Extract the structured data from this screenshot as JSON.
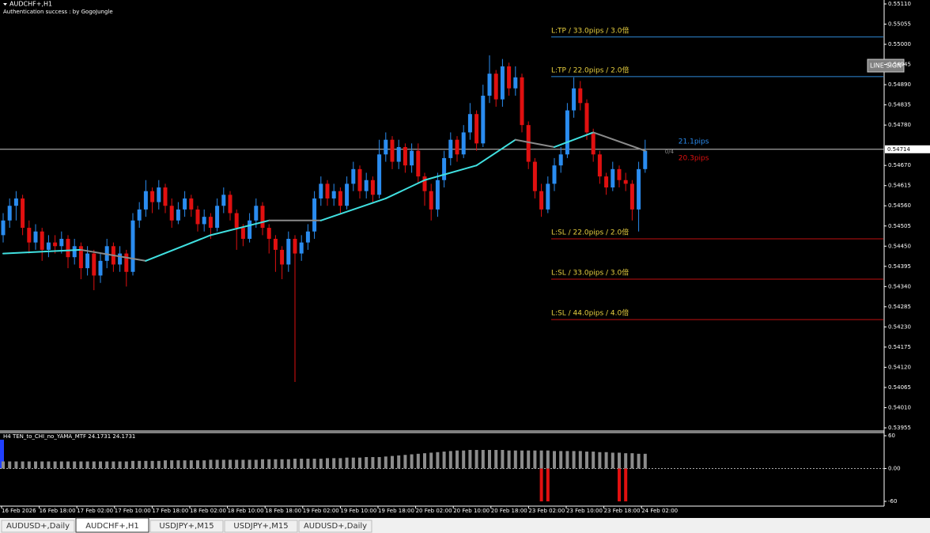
{
  "window": {
    "symbol": "AUDCHF+,H1",
    "auth": "Authentication success : by GogoJungle",
    "button": "LINE SIGN",
    "tabs": [
      "AUDUSD+,Daily",
      "AUDCHF+,H1",
      "USDJPY+,M15",
      "USDJPY+,M15",
      "AUDUSD+,Daily"
    ],
    "active_tab": 1
  },
  "chart_data": {
    "type": "candlestick",
    "ylim": [
      0.53955,
      0.5511
    ],
    "yticks": [
      {
        "value": 0.5511,
        "label": "0.55110"
      },
      {
        "value": 0.55055,
        "label": "0.55055"
      },
      {
        "value": 0.55,
        "label": "0.55000"
      },
      {
        "value": 0.54945,
        "label": "0.54945"
      },
      {
        "value": 0.5489,
        "label": "0.54890"
      },
      {
        "value": 0.54835,
        "label": "0.54835"
      },
      {
        "value": 0.5478,
        "label": "0.54780"
      },
      {
        "value": 0.5467,
        "label": "0.54670"
      },
      {
        "value": 0.54615,
        "label": "0.54615"
      },
      {
        "value": 0.5456,
        "label": "0.54560"
      },
      {
        "value": 0.54505,
        "label": "0.54505"
      },
      {
        "value": 0.5445,
        "label": "0.54450"
      },
      {
        "value": 0.54395,
        "label": "0.54395"
      },
      {
        "value": 0.5434,
        "label": "0.54340"
      },
      {
        "value": 0.54285,
        "label": "0.54285"
      },
      {
        "value": 0.5423,
        "label": "0.54230"
      },
      {
        "value": 0.54175,
        "label": "0.54175"
      },
      {
        "value": 0.5412,
        "label": "0.54120"
      },
      {
        "value": 0.54065,
        "label": "0.54065"
      },
      {
        "value": 0.5401,
        "label": "0.54010"
      },
      {
        "value": 0.53955,
        "label": "0.53955"
      }
    ],
    "xtick_labels": [
      "16 Feb 2026",
      "16 Feb 18:00",
      "17 Feb 02:00",
      "17 Feb 10:00",
      "17 Feb 18:00",
      "18 Feb 02:00",
      "18 Feb 10:00",
      "18 Feb 18:00",
      "19 Feb 02:00",
      "19 Feb 10:00",
      "19 Feb 18:00",
      "20 Feb 02:00",
      "20 Feb 10:00",
      "20 Feb 18:00",
      "23 Feb 02:00",
      "23 Feb 10:00",
      "23 Feb 18:00",
      "24 Feb 02:00"
    ],
    "up_color": "#2a8cf0",
    "down_color": "#e01010",
    "current": {
      "value": 0.54714,
      "label": "0.54714"
    },
    "pips": [
      {
        "label": "21.1pips",
        "color": "#2a8cf0"
      },
      {
        "label": "20.3pips",
        "color": "#e01010"
      }
    ],
    "counter": "0/4",
    "levels": [
      {
        "label": "L:TP / 33.0pips / 3.0倍",
        "value": 0.5502,
        "color": "#2f8ad8"
      },
      {
        "label": "L:TP / 22.0pips / 2.0倍",
        "value": 0.54912,
        "color": "#2f8ad8"
      },
      {
        "label": "L:SL / 22.0pips / 2.0倍",
        "value": 0.5447,
        "color": "#c01010"
      },
      {
        "label": "L:SL / 33.0pips / 3.0倍",
        "value": 0.5436,
        "color": "#c01010"
      },
      {
        "label": "L:SL / 44.0pips / 4.0倍",
        "value": 0.5425,
        "color": "#c01010"
      }
    ],
    "ohlc": [
      [
        0.5448,
        0.5454,
        0.5446,
        0.5452
      ],
      [
        0.5452,
        0.5458,
        0.545,
        0.5456
      ],
      [
        0.5456,
        0.546,
        0.5452,
        0.5458
      ],
      [
        0.5458,
        0.5459,
        0.5448,
        0.545
      ],
      [
        0.545,
        0.5452,
        0.5443,
        0.5446
      ],
      [
        0.5446,
        0.5451,
        0.5444,
        0.5449
      ],
      [
        0.5449,
        0.545,
        0.5441,
        0.5444
      ],
      [
        0.5444,
        0.5448,
        0.5442,
        0.5446
      ],
      [
        0.5446,
        0.5448,
        0.5443,
        0.5445
      ],
      [
        0.5445,
        0.5449,
        0.5443,
        0.5447
      ],
      [
        0.5447,
        0.5448,
        0.5439,
        0.5442
      ],
      [
        0.5442,
        0.5447,
        0.544,
        0.5445
      ],
      [
        0.5445,
        0.5446,
        0.5436,
        0.5439
      ],
      [
        0.5439,
        0.5445,
        0.5437,
        0.5443
      ],
      [
        0.5443,
        0.5444,
        0.5433,
        0.5437
      ],
      [
        0.5437,
        0.5443,
        0.5435,
        0.5441
      ],
      [
        0.5441,
        0.5447,
        0.5439,
        0.5445
      ],
      [
        0.5445,
        0.5446,
        0.5438,
        0.544
      ],
      [
        0.544,
        0.5445,
        0.5438,
        0.5443
      ],
      [
        0.5443,
        0.5444,
        0.5434,
        0.5438
      ],
      [
        0.5438,
        0.5454,
        0.5437,
        0.5452
      ],
      [
        0.5452,
        0.5457,
        0.545,
        0.5455
      ],
      [
        0.5455,
        0.5463,
        0.5453,
        0.546
      ],
      [
        0.546,
        0.5461,
        0.5454,
        0.5457
      ],
      [
        0.5457,
        0.5463,
        0.5455,
        0.5461
      ],
      [
        0.5461,
        0.5462,
        0.5454,
        0.5456
      ],
      [
        0.5456,
        0.5458,
        0.545,
        0.5452
      ],
      [
        0.5452,
        0.5457,
        0.5451,
        0.5455
      ],
      [
        0.5455,
        0.546,
        0.5453,
        0.5458
      ],
      [
        0.5458,
        0.5459,
        0.5453,
        0.5455
      ],
      [
        0.5455,
        0.5456,
        0.5449,
        0.5451
      ],
      [
        0.5451,
        0.5455,
        0.5449,
        0.5453
      ],
      [
        0.5453,
        0.5454,
        0.5447,
        0.545
      ],
      [
        0.545,
        0.5458,
        0.5449,
        0.5456
      ],
      [
        0.5456,
        0.5461,
        0.5454,
        0.5459
      ],
      [
        0.5459,
        0.546,
        0.5452,
        0.5454
      ],
      [
        0.5454,
        0.5455,
        0.5444,
        0.545
      ],
      [
        0.545,
        0.5451,
        0.5445,
        0.5447
      ],
      [
        0.5447,
        0.5454,
        0.5446,
        0.5452
      ],
      [
        0.5452,
        0.5458,
        0.545,
        0.5456
      ],
      [
        0.5456,
        0.5457,
        0.5448,
        0.545
      ],
      [
        0.545,
        0.5451,
        0.5443,
        0.5447
      ],
      [
        0.5447,
        0.5448,
        0.5438,
        0.5444
      ],
      [
        0.5444,
        0.5445,
        0.5436,
        0.544
      ],
      [
        0.544,
        0.5449,
        0.5438,
        0.5447
      ],
      [
        0.5447,
        0.5448,
        0.5408,
        0.5443
      ],
      [
        0.5443,
        0.5448,
        0.5441,
        0.5446
      ],
      [
        0.5446,
        0.5451,
        0.5444,
        0.5449
      ],
      [
        0.5449,
        0.546,
        0.5447,
        0.5458
      ],
      [
        0.5458,
        0.5464,
        0.5456,
        0.5462
      ],
      [
        0.5462,
        0.5463,
        0.5456,
        0.5458
      ],
      [
        0.5458,
        0.5462,
        0.5456,
        0.546
      ],
      [
        0.546,
        0.5461,
        0.5454,
        0.5456
      ],
      [
        0.5456,
        0.5464,
        0.5455,
        0.5462
      ],
      [
        0.5462,
        0.5468,
        0.546,
        0.5466
      ],
      [
        0.5466,
        0.5467,
        0.5458,
        0.546
      ],
      [
        0.546,
        0.5465,
        0.5458,
        0.5463
      ],
      [
        0.5463,
        0.5464,
        0.5457,
        0.5459
      ],
      [
        0.5459,
        0.5474,
        0.5458,
        0.547
      ],
      [
        0.547,
        0.5476,
        0.5468,
        0.5474
      ],
      [
        0.5474,
        0.5475,
        0.5466,
        0.5468
      ],
      [
        0.5468,
        0.5474,
        0.5466,
        0.5472
      ],
      [
        0.5472,
        0.5473,
        0.5465,
        0.5467
      ],
      [
        0.5467,
        0.5473,
        0.5465,
        0.5471
      ],
      [
        0.5471,
        0.5473,
        0.5462,
        0.5464
      ],
      [
        0.5464,
        0.5465,
        0.5456,
        0.546
      ],
      [
        0.546,
        0.5462,
        0.5452,
        0.5455
      ],
      [
        0.5455,
        0.5465,
        0.5453,
        0.5463
      ],
      [
        0.5463,
        0.5471,
        0.5461,
        0.5469
      ],
      [
        0.5469,
        0.5476,
        0.5467,
        0.5474
      ],
      [
        0.5474,
        0.5475,
        0.5468,
        0.547
      ],
      [
        0.547,
        0.5478,
        0.5469,
        0.5476
      ],
      [
        0.5476,
        0.5484,
        0.5474,
        0.5481
      ],
      [
        0.5481,
        0.5482,
        0.5471,
        0.5473
      ],
      [
        0.5473,
        0.5489,
        0.5472,
        0.5486
      ],
      [
        0.5486,
        0.5497,
        0.5484,
        0.5492
      ],
      [
        0.5492,
        0.5493,
        0.5483,
        0.5485
      ],
      [
        0.5485,
        0.5496,
        0.5483,
        0.5494
      ],
      [
        0.5494,
        0.5495,
        0.5486,
        0.5488
      ],
      [
        0.5488,
        0.5494,
        0.5486,
        0.5491
      ],
      [
        0.5491,
        0.5492,
        0.5476,
        0.5478
      ],
      [
        0.5478,
        0.5479,
        0.5466,
        0.5468
      ],
      [
        0.5468,
        0.5469,
        0.5458,
        0.546
      ],
      [
        0.546,
        0.5462,
        0.5453,
        0.5455
      ],
      [
        0.5455,
        0.5464,
        0.5454,
        0.5462
      ],
      [
        0.5462,
        0.5469,
        0.546,
        0.5467
      ],
      [
        0.5467,
        0.5472,
        0.5465,
        0.547
      ],
      [
        0.547,
        0.5484,
        0.5469,
        0.5482
      ],
      [
        0.5482,
        0.5491,
        0.548,
        0.5488
      ],
      [
        0.5488,
        0.549,
        0.5482,
        0.5484
      ],
      [
        0.5484,
        0.5485,
        0.5474,
        0.5476
      ],
      [
        0.5476,
        0.5477,
        0.5468,
        0.547
      ],
      [
        0.547,
        0.5471,
        0.5462,
        0.5464
      ],
      [
        0.5464,
        0.5465,
        0.5459,
        0.5461
      ],
      [
        0.5461,
        0.5468,
        0.546,
        0.5466
      ],
      [
        0.5466,
        0.5467,
        0.5461,
        0.5463
      ],
      [
        0.5463,
        0.5465,
        0.546,
        0.5462
      ],
      [
        0.5462,
        0.5463,
        0.5452,
        0.5455
      ],
      [
        0.5455,
        0.5468,
        0.5449,
        0.5466
      ],
      [
        0.5466,
        0.5474,
        0.5465,
        0.5471
      ]
    ],
    "ma": {
      "x": [
        0,
        12,
        22,
        32,
        41,
        49,
        59,
        65,
        73,
        79,
        85,
        91,
        99
      ],
      "values": [
        0.5443,
        0.5444,
        0.5441,
        0.5448,
        0.5452,
        0.5452,
        0.5458,
        0.5463,
        0.5467,
        0.5474,
        0.5472,
        0.5476,
        0.5471
      ],
      "up_color": "#40e0e0",
      "down_color": "#8a8a8a"
    },
    "indicator": {
      "title": "H4  TEN_to_CHI_no_YAMA_MTF  24.1731 24.1731",
      "ylim": [
        -60,
        60
      ],
      "yticks": [
        60,
        {
          "value": 0,
          "label": "0.00"
        },
        -60
      ],
      "color": "#8c8c8c",
      "values": [
        13,
        13,
        13,
        13,
        13,
        13,
        13,
        13,
        13,
        13,
        13,
        13,
        13,
        13,
        13,
        13,
        13,
        13,
        13,
        13,
        14,
        14,
        14,
        14,
        14,
        15,
        15,
        15,
        15,
        15,
        15,
        15,
        16,
        16,
        16,
        16,
        16,
        16,
        16,
        16,
        17,
        17,
        17,
        17,
        17,
        18,
        18,
        18,
        18,
        18,
        19,
        19,
        19,
        20,
        20,
        20,
        21,
        21,
        21,
        22,
        23,
        24,
        25,
        26,
        27,
        28,
        29,
        30,
        31,
        32,
        33,
        33,
        34,
        34,
        34,
        34,
        34,
        34,
        33,
        33,
        33,
        33,
        33,
        33,
        33,
        32,
        32,
        32,
        32,
        32,
        31,
        31,
        30,
        30,
        29,
        29,
        28,
        28,
        27,
        27
      ],
      "signals": {
        "x": [
          83,
          84,
          95,
          96
        ],
        "values": [
          -60,
          -60,
          -60,
          -60
        ],
        "color": "#e01010"
      }
    }
  }
}
